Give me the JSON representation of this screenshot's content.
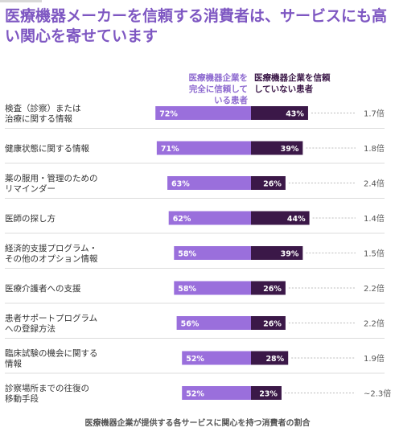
{
  "title": "医療機器メーカーを信頼する消費者は、サービスにも高い関心を寄せています",
  "legend": {
    "trusting": "医療機器企業を完全に信頼している患者",
    "distrusting": "医療機器企業を信頼していない患者"
  },
  "caption": "医療機器企業が提供する各サービスに関心を持つ消費者の割合",
  "colors": {
    "trusting": "#9a6fdc",
    "distrusting": "#3b1848",
    "ratio_text": "#555555",
    "row_divider": "#dcdcdc"
  },
  "chart_data": {
    "type": "bar",
    "orientation": "horizontal-diverging",
    "categories": [
      "検査（診察）または治療に関する情報",
      "健康状態に関する情報",
      "薬の服用・管理のためのリマインダー",
      "医師の探し方",
      "経済的支援プログラム・その他のオプション情報",
      "医療介護者への支援",
      "患者サポートプログラムへの登録方法",
      "臨床試験の機会に関する情報",
      "診察場所までの往復の移動手段"
    ],
    "category_lines": [
      [
        "検査（診察）または",
        "治療に関する情報"
      ],
      [
        "健康状態に関する情報"
      ],
      [
        "薬の服用・管理のための",
        "リマインダー"
      ],
      [
        "医師の探し方"
      ],
      [
        "経済的支援プログラム・",
        "その他のオプション情報"
      ],
      [
        "医療介護者への支援"
      ],
      [
        "患者サポートプログラム",
        "への登録方法"
      ],
      [
        "臨床試験の機会に関する",
        "情報"
      ],
      [
        "診察場所までの往復の",
        "移動手段"
      ]
    ],
    "series": [
      {
        "name": "医療機器企業を完全に信頼している患者",
        "values": [
          72,
          71,
          63,
          62,
          58,
          58,
          56,
          52,
          52
        ],
        "labels": [
          "72%",
          "71%",
          "63%",
          "62%",
          "58%",
          "58%",
          "56%",
          "52%",
          "52%"
        ]
      },
      {
        "name": "医療機器企業を信頼していない患者",
        "values": [
          43,
          39,
          26,
          44,
          39,
          26,
          26,
          28,
          23
        ],
        "labels": [
          "43%",
          "39%",
          "26%",
          "44%",
          "39%",
          "26%",
          "26%",
          "28%",
          "23%"
        ]
      }
    ],
    "ratios": [
      "1.7倍",
      "1.8倍",
      "2.4倍",
      "1.4倍",
      "1.5倍",
      "2.2倍",
      "2.2倍",
      "1.9倍",
      "~2.3倍"
    ],
    "grid": false
  }
}
